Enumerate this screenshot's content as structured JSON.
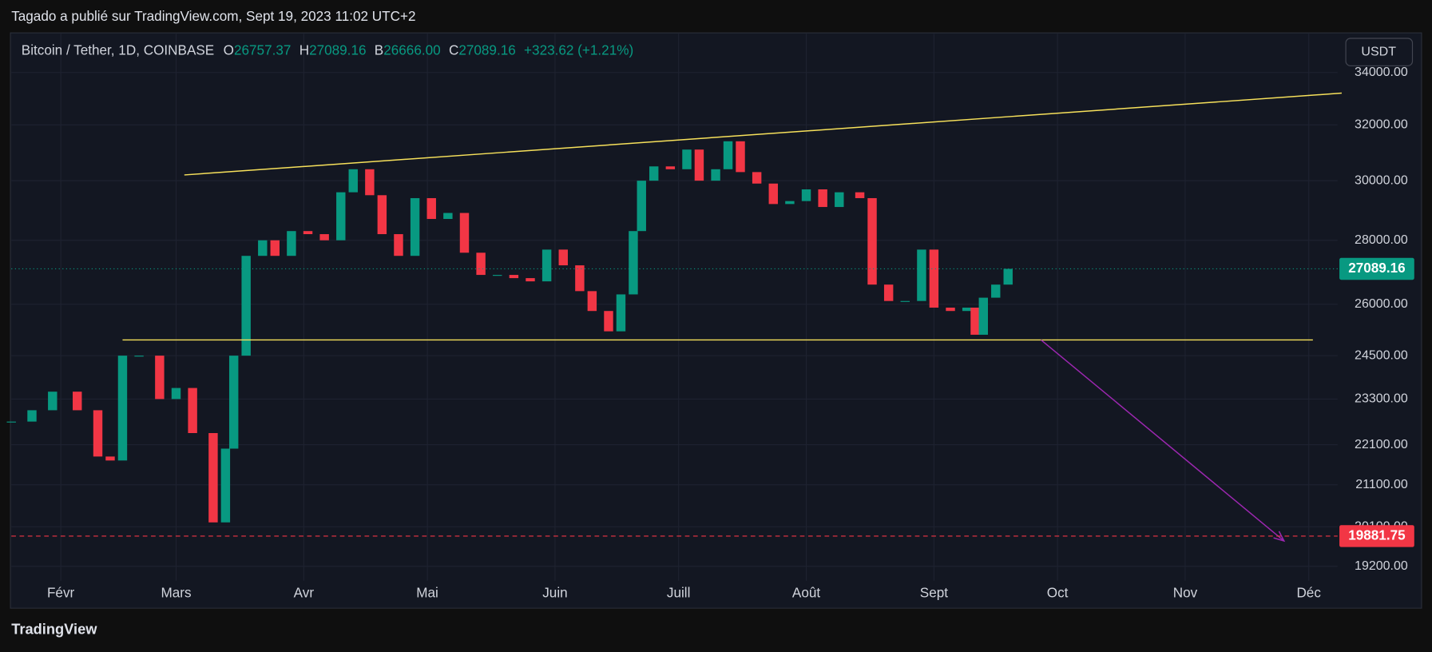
{
  "header": {
    "publisher": "Tagado a publié sur TradingView.com, Sept 19, 2023 11:02 UTC+2",
    "currency": "USDT",
    "brand": "TradingView",
    "ohlc": [
      {
        "key": "O",
        "value": "26757.37"
      },
      {
        "key": "H",
        "value": "27089.16"
      },
      {
        "key": "B",
        "value": "26666.00"
      },
      {
        "key": "C",
        "value": "27089.16"
      }
    ],
    "change": "+323.62 (+1.21%)"
  },
  "chart_data": {
    "type": "candlestick",
    "title": "Bitcoin / Tether, 1D, COINBASE",
    "x": [
      "2023-01-20",
      "2023-01-25",
      "2023-01-30",
      "2023-02-05",
      "2023-02-10",
      "2023-02-13",
      "2023-02-16",
      "2023-02-20",
      "2023-02-25",
      "2023-03-01",
      "2023-03-05",
      "2023-03-10",
      "2023-03-13",
      "2023-03-15",
      "2023-03-18",
      "2023-03-22",
      "2023-03-25",
      "2023-03-29",
      "2023-04-02",
      "2023-04-06",
      "2023-04-10",
      "2023-04-13",
      "2023-04-17",
      "2023-04-20",
      "2023-04-24",
      "2023-04-28",
      "2023-05-02",
      "2023-05-06",
      "2023-05-10",
      "2023-05-14",
      "2023-05-18",
      "2023-05-22",
      "2023-05-26",
      "2023-05-30",
      "2023-06-03",
      "2023-06-07",
      "2023-06-10",
      "2023-06-14",
      "2023-06-17",
      "2023-06-20",
      "2023-06-22",
      "2023-06-25",
      "2023-06-29",
      "2023-07-03",
      "2023-07-06",
      "2023-07-10",
      "2023-07-13",
      "2023-07-16",
      "2023-07-20",
      "2023-07-24",
      "2023-07-28",
      "2023-08-01",
      "2023-08-05",
      "2023-08-09",
      "2023-08-14",
      "2023-08-17",
      "2023-08-21",
      "2023-08-25",
      "2023-08-29",
      "2023-09-01",
      "2023-09-05",
      "2023-09-09",
      "2023-09-11",
      "2023-09-13",
      "2023-09-16",
      "2023-09-19"
    ],
    "values": [
      22700,
      23000,
      23500,
      23000,
      21800,
      21700,
      24500,
      24500,
      23300,
      23600,
      22400,
      20200,
      22000,
      24500,
      27500,
      28000,
      27500,
      28300,
      28200,
      28000,
      29600,
      30400,
      29500,
      28200,
      27500,
      29400,
      28700,
      28900,
      27600,
      26900,
      26900,
      26800,
      26700,
      27700,
      27200,
      26400,
      25800,
      25200,
      26300,
      28300,
      30000,
      30500,
      30400,
      31100,
      30000,
      30400,
      31400,
      30300,
      29900,
      29200,
      29300,
      29700,
      29100,
      29600,
      29400,
      26600,
      26100,
      26100,
      27700,
      25900,
      25800,
      25900,
      25100,
      26200,
      26600,
      27089.16
    ],
    "up_color": "#089981",
    "down_color": "#f23645",
    "xlim": [
      "2023-01-20",
      "2023-12-08"
    ],
    "xticks": [
      {
        "value": "2023-02-01",
        "label": "Févr"
      },
      {
        "value": "2023-03-01",
        "label": "Mars"
      },
      {
        "value": "2023-04-01",
        "label": "Avr"
      },
      {
        "value": "2023-05-01",
        "label": "Mai"
      },
      {
        "value": "2023-06-01",
        "label": "Juin"
      },
      {
        "value": "2023-07-01",
        "label": "Juill"
      },
      {
        "value": "2023-08-01",
        "label": "Août"
      },
      {
        "value": "2023-09-01",
        "label": "Sept"
      },
      {
        "value": "2023-10-01",
        "label": "Oct"
      },
      {
        "value": "2023-11-01",
        "label": "Nov"
      },
      {
        "value": "2023-12-01",
        "label": "Déc"
      }
    ],
    "ylim": [
      18880,
      35560
    ],
    "log_scale": true,
    "grid": true,
    "yticks": [
      {
        "value": 19200,
        "label": "19200.00"
      },
      {
        "value": 20100,
        "label": "20100.00"
      },
      {
        "value": 21100,
        "label": "21100.00"
      },
      {
        "value": 22100,
        "label": "22100.00"
      },
      {
        "value": 23300,
        "label": "23300.00"
      },
      {
        "value": 24500,
        "label": "24500.00"
      },
      {
        "value": 26000,
        "label": "26000.00"
      },
      {
        "value": 28000,
        "label": "28000.00"
      },
      {
        "value": 30000,
        "label": "30000.00"
      },
      {
        "value": 32000,
        "label": "32000.00"
      },
      {
        "value": 34000,
        "label": "34000.00"
      }
    ],
    "trendlines": [
      {
        "x": [
          "2023-03-03",
          "2023-12-09"
        ],
        "y": [
          30200,
          33200
        ],
        "color": "#f7e15b"
      },
      {
        "x": [
          "2023-02-16",
          "2023-12-02"
        ],
        "y": [
          24950,
          24950
        ],
        "color": "#f7e15b"
      }
    ],
    "arrow": {
      "x": [
        "2023-09-27",
        "2023-11-25"
      ],
      "y": [
        24950,
        19770
      ],
      "color": "#9c27b0"
    },
    "price_lines": [
      {
        "value": 27089.16,
        "label": "27089.16",
        "color": "#089981"
      },
      {
        "value": 19881.75,
        "label": "19881.75",
        "color": "#f23645"
      }
    ]
  }
}
